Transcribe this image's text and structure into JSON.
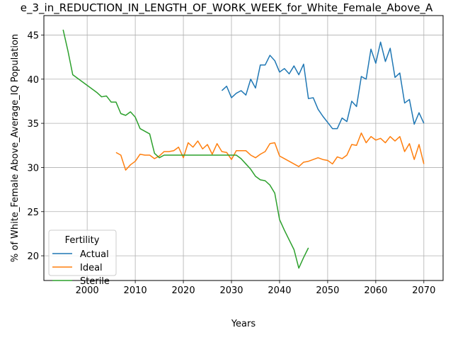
{
  "chart_data": {
    "type": "line",
    "title": "e_3_in_REDUCTION_IN_LENGTH_OF_WORK_WEEK_for_White_Female_Above_A",
    "xlabel": "Years",
    "ylabel": "% of White_Female Above_Average_IQ Population",
    "xlim": [
      1991,
      2074
    ],
    "ylim": [
      17.2,
      47.2
    ],
    "xticks": [
      2000,
      2010,
      2020,
      2030,
      2040,
      2050,
      2060,
      2070
    ],
    "yticks": [
      20,
      25,
      30,
      35,
      40,
      45
    ],
    "grid": true,
    "legend": {
      "title": "Fertility",
      "position": "lower-left"
    },
    "series": [
      {
        "name": "Actual",
        "color": "#1f77b4",
        "x": [
          2028,
          2029,
          2030,
          2031,
          2032,
          2033,
          2034,
          2035,
          2036,
          2037,
          2038,
          2039,
          2040,
          2041,
          2042,
          2043,
          2044,
          2045,
          2046,
          2047,
          2048,
          2049,
          2050,
          2051,
          2052,
          2053,
          2054,
          2055,
          2056,
          2057,
          2058,
          2059,
          2060,
          2061,
          2062,
          2063,
          2064,
          2065,
          2066,
          2067,
          2068,
          2069,
          2070
        ],
        "y": [
          38.7,
          39.2,
          37.9,
          38.4,
          38.7,
          38.2,
          40.0,
          39.0,
          41.6,
          41.6,
          42.7,
          42.1,
          40.8,
          41.2,
          40.6,
          41.5,
          40.5,
          41.7,
          37.8,
          37.9,
          36.6,
          35.8,
          35.1,
          34.4,
          34.4,
          35.6,
          35.2,
          37.5,
          36.9,
          40.3,
          40.0,
          43.4,
          41.8,
          44.2,
          42.0,
          43.5,
          40.2,
          40.7,
          37.3,
          37.7,
          34.9,
          36.2,
          35.0
        ]
      },
      {
        "name": "Ideal",
        "color": "#ff7f0e",
        "x": [
          2006,
          2007,
          2008,
          2009,
          2010,
          2011,
          2012,
          2013,
          2014,
          2015,
          2016,
          2017,
          2018,
          2019,
          2020,
          2021,
          2022,
          2023,
          2024,
          2025,
          2026,
          2027,
          2028,
          2029,
          2030,
          2031,
          2032,
          2033,
          2034,
          2035,
          2036,
          2037,
          2038,
          2039,
          2040,
          2041,
          2042,
          2043,
          2044,
          2045,
          2046,
          2047,
          2048,
          2049,
          2050,
          2051,
          2052,
          2053,
          2054,
          2055,
          2056,
          2057,
          2058,
          2059,
          2060,
          2061,
          2062,
          2063,
          2064,
          2065,
          2066,
          2067,
          2068,
          2069,
          2070
        ],
        "y": [
          31.7,
          31.4,
          29.7,
          30.3,
          30.7,
          31.5,
          31.4,
          31.4,
          31.0,
          31.3,
          31.8,
          31.8,
          31.9,
          32.3,
          31.1,
          32.8,
          32.3,
          33.0,
          32.1,
          32.6,
          31.5,
          32.7,
          31.8,
          31.7,
          30.9,
          31.9,
          31.9,
          31.9,
          31.4,
          31.1,
          31.5,
          31.8,
          32.7,
          32.8,
          31.3,
          31.0,
          30.7,
          30.4,
          30.1,
          30.6,
          30.7,
          30.9,
          31.1,
          30.9,
          30.8,
          30.4,
          31.2,
          31.0,
          31.4,
          32.6,
          32.5,
          33.9,
          32.8,
          33.5,
          33.1,
          33.3,
          32.8,
          33.5,
          33.0,
          33.5,
          31.8,
          32.7,
          30.9,
          32.6,
          30.4
        ]
      },
      {
        "name": "Sterile",
        "color": "#2ca02c",
        "x": [
          1995,
          1996,
          1997,
          1998,
          1999,
          2000,
          2001,
          2002,
          2003,
          2004,
          2005,
          2006,
          2007,
          2008,
          2009,
          2010,
          2011,
          2012,
          2013,
          2014,
          2015,
          2016,
          2017,
          2018,
          2019,
          2020,
          2021,
          2022,
          2023,
          2024,
          2025,
          2026,
          2027,
          2028,
          2029,
          2030,
          2031,
          2032,
          2033,
          2034,
          2035,
          2036,
          2037,
          2038,
          2039,
          2040,
          2041,
          2042,
          2043,
          2044,
          2045,
          2046
        ],
        "y": [
          45.6,
          43.2,
          40.5,
          40.1,
          39.7,
          39.3,
          38.9,
          38.5,
          38.0,
          38.1,
          37.4,
          37.4,
          36.1,
          35.9,
          36.3,
          35.7,
          34.4,
          34.1,
          33.8,
          31.6,
          31.1,
          31.4,
          31.4,
          31.4,
          31.4,
          31.4,
          31.4,
          31.4,
          31.4,
          31.4,
          31.4,
          31.4,
          31.4,
          31.4,
          31.4,
          31.4,
          31.4,
          31.0,
          30.4,
          29.8,
          29.0,
          28.6,
          28.5,
          28.0,
          27.1,
          24.1,
          22.9,
          21.8,
          20.7,
          18.6,
          19.8,
          20.9
        ]
      }
    ]
  }
}
